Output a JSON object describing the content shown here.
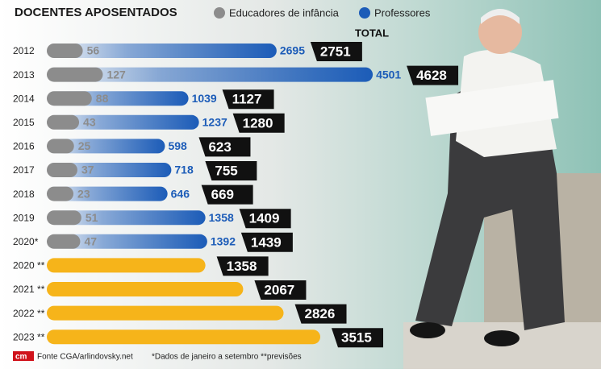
{
  "chart_data": {
    "type": "bar",
    "title": "DOCENTES APOSENTADOS",
    "categories": [
      "2012",
      "2013",
      "2014",
      "2015",
      "2016",
      "2017",
      "2018",
      "2019",
      "2020*",
      "2020 **",
      "2021 **",
      "2022 **",
      "2023 **"
    ],
    "series": [
      {
        "name": "Educadores de infância",
        "color": "#8c8c8c",
        "values": [
          56,
          127,
          88,
          43,
          25,
          37,
          23,
          51,
          47,
          null,
          null,
          null,
          null
        ]
      },
      {
        "name": "Professores",
        "color": "#1c5cb8",
        "values": [
          2695,
          4501,
          1039,
          1237,
          598,
          718,
          646,
          1358,
          1392,
          null,
          null,
          null,
          null
        ]
      }
    ],
    "totals": {
      "label": "TOTAL",
      "color": "#f6b41a",
      "values": [
        2751,
        4628,
        1127,
        1280,
        623,
        755,
        669,
        1409,
        1439,
        1358,
        2067,
        2826,
        3515
      ]
    },
    "logo": "cm",
    "source": "Fonte CGA/arlindovsky.net",
    "footnote": "*Dados de janeiro a setembro **previsões"
  }
}
